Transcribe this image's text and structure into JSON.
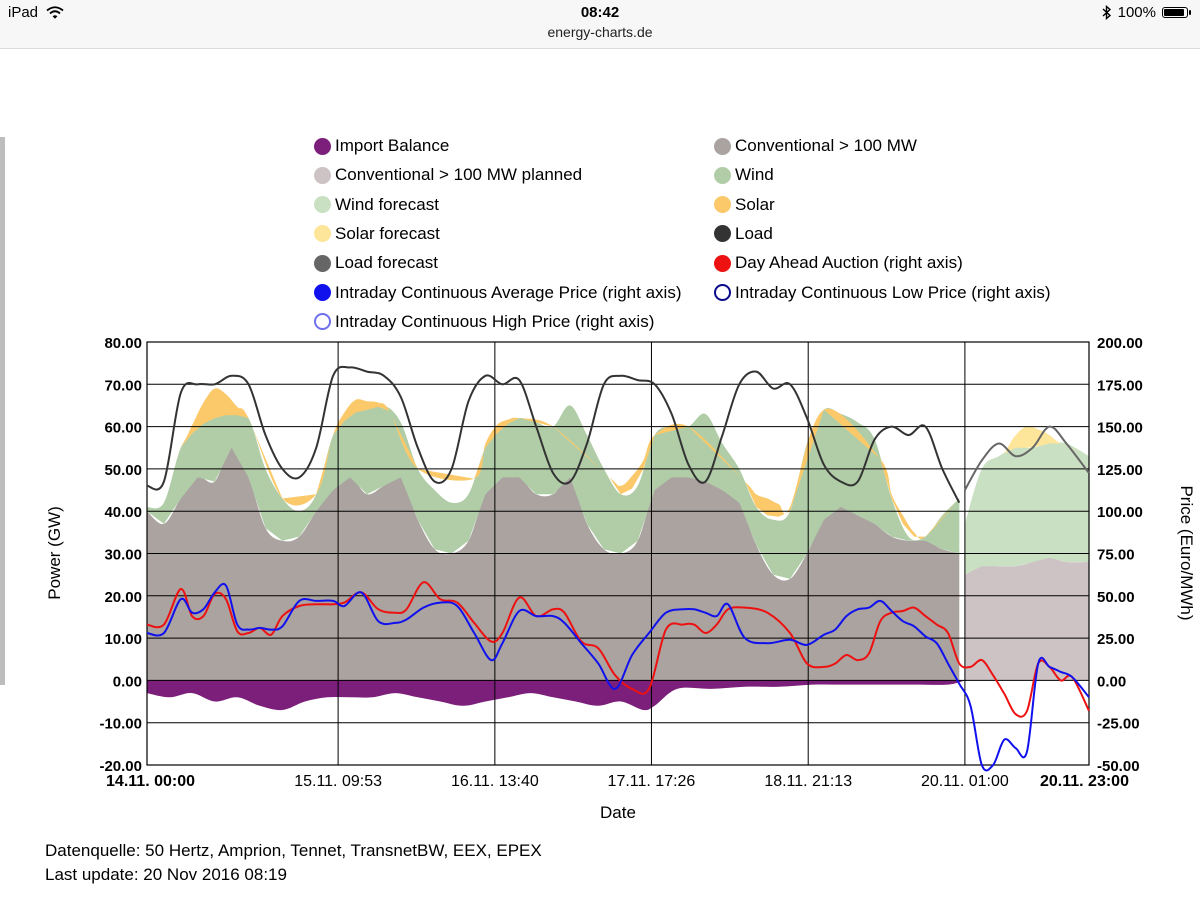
{
  "status_bar": {
    "device": "iPad",
    "time": "08:42",
    "url": "energy-charts.de",
    "battery": "100%",
    "battery_level": 1.0,
    "wifi_icon": "wifi-icon",
    "bluetooth_icon": "bluetooth-icon"
  },
  "legend": [
    {
      "label": "Import Balance",
      "color": "#7b1f7b",
      "style": "filled"
    },
    {
      "label": "Conventional > 100 MW",
      "color": "#aaa39f",
      "style": "filled"
    },
    {
      "label": "Conventional > 100 MW planned",
      "color": "#cdc2c4",
      "style": "filled"
    },
    {
      "label": "Wind",
      "color": "#b0cda8",
      "style": "filled"
    },
    {
      "label": "Wind forecast",
      "color": "#c9e0c2",
      "style": "filled"
    },
    {
      "label": "Solar",
      "color": "#fbc96a",
      "style": "filled"
    },
    {
      "label": "Solar forecast",
      "color": "#fde59a",
      "style": "filled"
    },
    {
      "label": "Load",
      "color": "#333333",
      "style": "filled"
    },
    {
      "label": "Load forecast",
      "color": "#666666",
      "style": "filled"
    },
    {
      "label": "Day Ahead Auction (right axis)",
      "color": "#ee1111",
      "style": "filled"
    },
    {
      "label": "Intraday Continuous Average Price (right axis)",
      "color": "#1111ee",
      "style": "filled"
    },
    {
      "label": "Intraday Continuous Low Price (right axis)",
      "color": "#0b0b8a",
      "style": "ring"
    },
    {
      "label": "Intraday Continuous High Price (right axis)",
      "color": "#7070ee",
      "style": "ring"
    }
  ],
  "chart_data": {
    "type": "area",
    "xlabel": "Date",
    "ylabel": "Power (GW)",
    "y2label": "Price (Euro/MWh)",
    "x_ticks": [
      "14.11. 00:00",
      "15.11. 09:53",
      "16.11. 13:40",
      "17.11. 17:26",
      "18.11. 21:13",
      "20.11. 01:00",
      "20.11. 23:00"
    ],
    "x_tick_hours": [
      0,
      33.88,
      61.67,
      89.43,
      117.22,
      145,
      167
    ],
    "xlim_hours": [
      0,
      167
    ],
    "ylim": [
      -20,
      80
    ],
    "y_ticks": [
      "80.00",
      "70.00",
      "60.00",
      "50.00",
      "40.00",
      "30.00",
      "20.00",
      "10.00",
      "0.00",
      "-10.00",
      "-20.00"
    ],
    "y2lim": [
      -50,
      200
    ],
    "y2_ticks": [
      "200.00",
      "175.00",
      "150.00",
      "125.00",
      "100.00",
      "75.00",
      "50.00",
      "25.00",
      "0.00",
      "-25.00",
      "-50.00"
    ],
    "grid": true,
    "series": [
      {
        "name": "Conventional > 100 MW",
        "unit": "GW",
        "x": [
          0,
          3,
          6,
          9,
          12,
          15,
          18,
          21,
          24,
          27,
          30,
          33,
          36,
          39,
          42,
          45,
          48,
          51,
          54,
          57,
          60,
          63,
          66,
          69,
          72,
          75,
          78,
          81,
          84,
          87,
          90,
          93,
          96,
          99,
          102,
          105,
          108,
          111,
          114,
          117,
          120,
          123,
          126,
          129,
          132,
          135,
          138,
          141,
          144
        ],
        "values": [
          40,
          37,
          43,
          48,
          47,
          55,
          48,
          36,
          33,
          34,
          40,
          45,
          48,
          44,
          46,
          48,
          38,
          31,
          30,
          33,
          44,
          48,
          48,
          44,
          44,
          48,
          37,
          31,
          30,
          33,
          45,
          48,
          48,
          47,
          45,
          42,
          32,
          25,
          24,
          30,
          38,
          41,
          39,
          37,
          34,
          33,
          33,
          31,
          30
        ]
      },
      {
        "name": "Conventional > 100 MW planned",
        "unit": "GW",
        "x": [
          145,
          148,
          151,
          154,
          157,
          160,
          163,
          167
        ],
        "values": [
          25,
          27,
          27,
          27,
          28,
          29,
          28,
          28
        ]
      },
      {
        "name": "Wind",
        "unit": "GW",
        "x": [
          0,
          3,
          6,
          9,
          12,
          15,
          18,
          21,
          24,
          27,
          30,
          33,
          36,
          39,
          42,
          45,
          48,
          51,
          54,
          57,
          60,
          63,
          66,
          69,
          72,
          75,
          78,
          81,
          84,
          87,
          90,
          93,
          96,
          99,
          102,
          105,
          108,
          111,
          114,
          117,
          120,
          123,
          126,
          129,
          132,
          135,
          138,
          141,
          144
        ],
        "values": [
          41,
          42,
          55,
          60,
          62,
          63,
          62,
          50,
          43,
          40,
          44,
          58,
          63,
          64,
          65,
          61,
          50,
          45,
          42,
          44,
          55,
          60,
          62,
          61,
          60,
          65,
          58,
          50,
          44,
          46,
          58,
          60,
          60,
          63,
          56,
          50,
          41,
          38,
          40,
          56,
          64,
          63,
          61,
          57,
          43,
          34,
          34,
          39,
          43
        ]
      },
      {
        "name": "Wind forecast",
        "unit": "GW",
        "x": [
          145,
          148,
          151,
          154,
          157,
          160,
          163,
          167
        ],
        "values": [
          37,
          50,
          53,
          55,
          55,
          56,
          56,
          53
        ]
      },
      {
        "name": "Solar",
        "unit": "GW",
        "x": [
          0,
          6,
          8,
          10,
          12,
          14,
          16,
          18,
          24,
          30,
          33,
          35,
          37,
          39,
          41,
          43,
          48,
          58,
          60,
          62,
          64,
          66,
          72,
          82,
          84,
          86,
          88,
          90,
          96,
          106,
          108,
          110,
          112,
          114,
          120,
          130,
          132,
          134,
          136,
          138,
          144
        ],
        "values": [
          0,
          0,
          2,
          5,
          7,
          5,
          2,
          0,
          0,
          0,
          0,
          2,
          3,
          2,
          1,
          0,
          0,
          0,
          1,
          2,
          1,
          0,
          0,
          0,
          2,
          3,
          2,
          0,
          0,
          0,
          3,
          4,
          3,
          1,
          0,
          0,
          1,
          2,
          1,
          0,
          0
        ]
      },
      {
        "name": "Solar forecast",
        "unit": "GW",
        "x": [
          145,
          152,
          154,
          156,
          158,
          160,
          162,
          167
        ],
        "values": [
          0,
          0,
          3,
          5,
          4,
          2,
          0,
          0
        ]
      },
      {
        "name": "Import Balance",
        "unit": "GW",
        "x": [
          0,
          4,
          8,
          12,
          16,
          20,
          24,
          28,
          32,
          36,
          40,
          44,
          48,
          52,
          56,
          60,
          64,
          68,
          72,
          76,
          80,
          84,
          88,
          90,
          94,
          100,
          106,
          112,
          118,
          124,
          130,
          136,
          142,
          145
        ],
        "values": [
          -3,
          -4,
          -3,
          -5,
          -4,
          -6,
          -7,
          -5,
          -4,
          -4,
          -4,
          -3,
          -4,
          -5,
          -6,
          -5,
          -4,
          -3,
          -4,
          -5,
          -6,
          -5,
          -7,
          -6,
          -2,
          -2,
          -1.5,
          -1.5,
          -1,
          -1,
          -1,
          -1,
          -1,
          0
        ]
      },
      {
        "name": "Load",
        "unit": "GW",
        "x": [
          0,
          3,
          6,
          9,
          12,
          15,
          18,
          21,
          24,
          27,
          30,
          33,
          36,
          39,
          42,
          45,
          48,
          51,
          54,
          57,
          60,
          63,
          66,
          69,
          72,
          75,
          78,
          81,
          84,
          87,
          90,
          93,
          96,
          99,
          102,
          105,
          108,
          111,
          114,
          117,
          120,
          123,
          126,
          129,
          132,
          135,
          138,
          141,
          144
        ],
        "values": [
          46,
          47,
          68,
          70,
          70,
          72,
          70,
          58,
          50,
          48,
          55,
          72,
          74,
          73,
          72,
          67,
          55,
          47,
          50,
          66,
          72,
          70,
          71,
          60,
          49,
          47,
          56,
          70,
          72,
          71,
          70,
          63,
          51,
          47,
          58,
          70,
          73,
          69,
          70,
          62,
          51,
          47,
          47,
          57,
          60,
          58,
          60,
          50,
          42
        ]
      },
      {
        "name": "Load forecast",
        "unit": "GW",
        "x": [
          145,
          148,
          151,
          154,
          157,
          160,
          163,
          167
        ],
        "values": [
          45,
          52,
          56,
          53,
          55,
          60,
          56,
          49
        ]
      },
      {
        "name": "Day Ahead Auction (right axis)",
        "unit": "Euro/MWh",
        "axis": "right",
        "x": [
          0,
          3,
          6,
          8,
          10,
          12,
          14,
          16,
          18,
          20,
          22,
          24,
          27,
          30,
          33,
          35,
          38,
          41,
          44,
          46,
          49,
          52,
          55,
          58,
          61,
          63,
          66,
          69,
          72,
          74,
          77,
          80,
          83,
          86,
          89,
          92,
          95,
          97,
          99,
          101,
          103,
          106,
          110,
          114,
          117,
          120,
          122,
          124,
          126,
          128,
          130,
          132,
          134,
          136,
          138,
          140,
          142,
          144,
          146,
          148,
          150,
          152,
          154,
          156,
          158,
          160,
          162,
          164,
          167
        ],
        "values": [
          33,
          33,
          54,
          38,
          38,
          51,
          48,
          29,
          28,
          31,
          27,
          38,
          44,
          45,
          45,
          46,
          52,
          42,
          40,
          42,
          58,
          48,
          46,
          34,
          23,
          28,
          49,
          38,
          42,
          40,
          23,
          19,
          3,
          -5,
          -5,
          30,
          33,
          33,
          28,
          33,
          42,
          43,
          40,
          28,
          10,
          8,
          10,
          15,
          12,
          16,
          35,
          40,
          41,
          43,
          38,
          33,
          28,
          10,
          8,
          12,
          3,
          -8,
          -20,
          -18,
          10,
          8,
          0,
          2,
          -18
        ]
      },
      {
        "name": "Intraday Continuous Average Price (right axis)",
        "unit": "Euro/MWh",
        "axis": "right",
        "x": [
          0,
          3,
          6,
          8,
          10,
          12,
          14,
          16,
          18,
          20,
          22,
          24,
          27,
          30,
          33,
          35,
          38,
          41,
          44,
          46,
          49,
          52,
          55,
          58,
          61,
          63,
          66,
          69,
          72,
          74,
          77,
          80,
          83,
          86,
          89,
          92,
          95,
          97,
          99,
          101,
          103,
          106,
          110,
          114,
          117,
          120,
          122,
          124,
          126,
          128,
          130,
          132,
          134,
          136,
          138,
          140,
          142,
          144,
          146,
          148,
          150,
          152,
          154,
          156,
          158,
          160,
          162,
          164,
          167
        ],
        "values": [
          28,
          28,
          48,
          40,
          42,
          52,
          56,
          33,
          30,
          31,
          30,
          32,
          47,
          47,
          47,
          44,
          52,
          35,
          34,
          36,
          43,
          46,
          44,
          28,
          12,
          22,
          41,
          38,
          38,
          34,
          22,
          10,
          -5,
          15,
          28,
          40,
          42,
          42,
          40,
          38,
          45,
          25,
          22,
          24,
          21,
          27,
          30,
          38,
          42,
          43,
          47,
          41,
          35,
          32,
          26,
          22,
          10,
          -2,
          -15,
          -50,
          -50,
          -35,
          -40,
          -42,
          10,
          8,
          5,
          2,
          -10
        ]
      }
    ]
  },
  "footer": {
    "source": "Datenquelle: 50 Hertz, Amprion, Tennet, TransnetBW, EEX, EPEX",
    "last_update": "Last update: 20 Nov 2016 08:19"
  }
}
